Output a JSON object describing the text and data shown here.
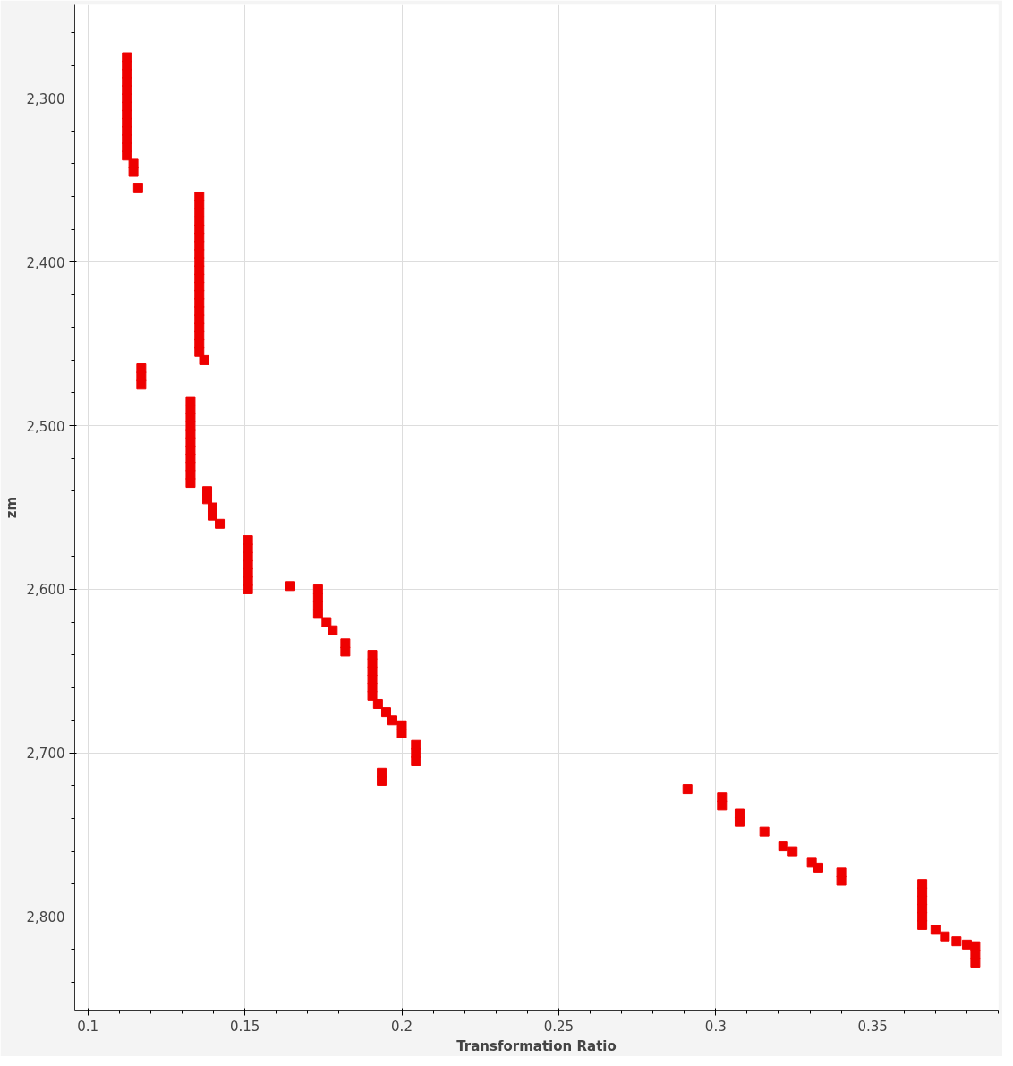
{
  "chart_data": {
    "type": "scatter",
    "xlabel": "Transformation Ratio",
    "ylabel": "zm",
    "marker": "square",
    "grid": true,
    "xlim": [
      0.0958,
      0.39
    ],
    "xticks": [
      0.1,
      0.15,
      0.2,
      0.25,
      0.3,
      0.35
    ],
    "ylim": [
      2857,
      2243
    ],
    "yticks": [
      {
        "value": 2300,
        "label": "2,300"
      },
      {
        "value": 2400,
        "label": "2,400"
      },
      {
        "value": 2500,
        "label": "2,500"
      },
      {
        "value": 2600,
        "label": "2,600"
      },
      {
        "value": 2700,
        "label": "2,700"
      },
      {
        "value": 2800,
        "label": "2,800"
      }
    ],
    "series": [
      {
        "color": "#ee0000",
        "x": [
          0.1124,
          0.1124,
          0.1124,
          0.1124,
          0.1124,
          0.1124,
          0.1124,
          0.1124,
          0.1124,
          0.1124,
          0.1124,
          0.1124,
          0.1124,
          0.1145,
          0.1145,
          0.116,
          0.1355,
          0.1355,
          0.1355,
          0.1355,
          0.1355,
          0.1355,
          0.1355,
          0.1355,
          0.1355,
          0.1355,
          0.1355,
          0.1355,
          0.1355,
          0.1355,
          0.1355,
          0.1355,
          0.1355,
          0.1355,
          0.1355,
          0.1355,
          0.137,
          0.117,
          0.117,
          0.117,
          0.1327,
          0.1327,
          0.1327,
          0.1327,
          0.1327,
          0.1327,
          0.1327,
          0.1327,
          0.1327,
          0.1327,
          0.1327,
          0.138,
          0.138,
          0.1397,
          0.1397,
          0.142,
          0.151,
          0.151,
          0.151,
          0.151,
          0.151,
          0.151,
          0.151,
          0.1645,
          0.1733,
          0.1733,
          0.1733,
          0.1733,
          0.176,
          0.178,
          0.182,
          0.182,
          0.1906,
          0.1906,
          0.1906,
          0.1906,
          0.1906,
          0.1906,
          0.1924,
          0.195,
          0.197,
          0.2,
          0.2,
          0.2045,
          0.2045,
          0.2045,
          0.1936,
          0.1936,
          0.291,
          0.302,
          0.302,
          0.3076,
          0.3076,
          0.3155,
          0.3215,
          0.3245,
          0.3306,
          0.3327,
          0.34,
          0.34,
          0.3658,
          0.3658,
          0.3658,
          0.3658,
          0.3658,
          0.3658,
          0.37,
          0.373,
          0.3767,
          0.38,
          0.3827,
          0.3827,
          0.3827
        ],
        "values": [
          2275,
          2280,
          2285,
          2290,
          2295,
          2300,
          2305,
          2310,
          2315,
          2320,
          2325,
          2330,
          2335,
          2340,
          2345,
          2355,
          2360,
          2365,
          2370,
          2375,
          2380,
          2385,
          2390,
          2395,
          2400,
          2405,
          2410,
          2415,
          2420,
          2425,
          2430,
          2435,
          2440,
          2445,
          2450,
          2455,
          2460,
          2465,
          2470,
          2475,
          2485,
          2490,
          2495,
          2500,
          2505,
          2510,
          2515,
          2520,
          2525,
          2530,
          2535,
          2540,
          2545,
          2550,
          2555,
          2560,
          2570,
          2575,
          2580,
          2585,
          2590,
          2595,
          2600,
          2598,
          2600,
          2605,
          2610,
          2615,
          2620,
          2625,
          2633,
          2638,
          2640,
          2645,
          2650,
          2655,
          2660,
          2665,
          2670,
          2675,
          2680,
          2683,
          2688,
          2695,
          2700,
          2705,
          2712,
          2717,
          2722,
          2727,
          2732,
          2737,
          2742,
          2748,
          2757,
          2760,
          2767,
          2770,
          2773,
          2778,
          2780,
          2785,
          2790,
          2795,
          2800,
          2805,
          2808,
          2812,
          2815,
          2817,
          2818,
          2823,
          2828
        ]
      }
    ]
  }
}
